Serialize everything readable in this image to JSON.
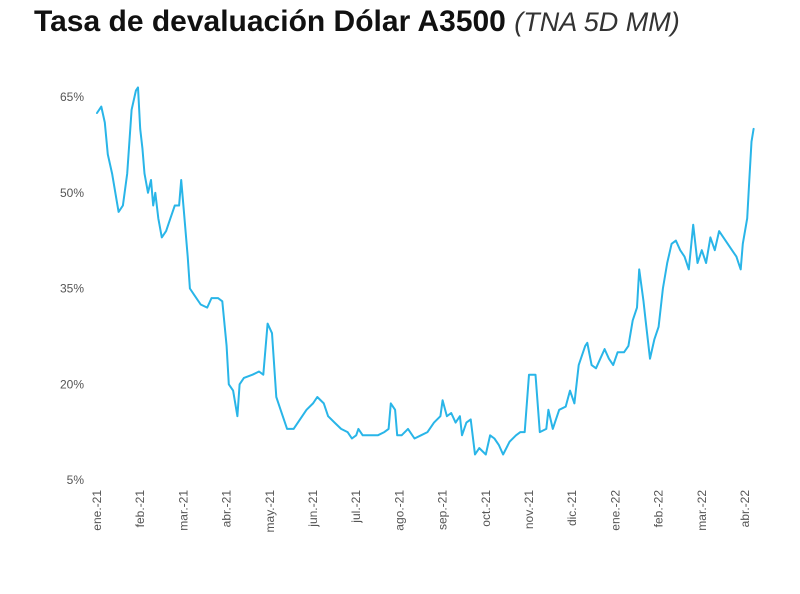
{
  "chart_data": {
    "type": "line",
    "title": "Tasa de devaluación Dólar A3500",
    "subtitle": "(TNA 5D MM)",
    "xlabel": "",
    "ylabel": "",
    "ylim": [
      5,
      65
    ],
    "ytick_values": [
      5,
      20,
      35,
      50,
      65
    ],
    "ytick_labels": [
      "5%",
      "20%",
      "35%",
      "50%",
      "65%"
    ],
    "x_ticks": [
      "ene.-21",
      "feb.-21",
      "mar.-21",
      "abr.-21",
      "may.-21",
      "jun.-21",
      "jul.-21",
      "ago.-21",
      "sep.-21",
      "oct.-21",
      "nov.-21",
      "dic.-21",
      "ene.-22",
      "feb.-22",
      "mar.-22",
      "abr.-22"
    ],
    "grid": false,
    "legend": "none",
    "series": [
      {
        "color": "#29B5E8",
        "points": [
          [
            0.0,
            62.5
          ],
          [
            0.1,
            63.5
          ],
          [
            0.18,
            61
          ],
          [
            0.25,
            56
          ],
          [
            0.35,
            53
          ],
          [
            0.45,
            49
          ],
          [
            0.5,
            47
          ],
          [
            0.6,
            48
          ],
          [
            0.7,
            53
          ],
          [
            0.8,
            63
          ],
          [
            0.9,
            66
          ],
          [
            0.95,
            66.5
          ],
          [
            1.0,
            60
          ],
          [
            1.05,
            57
          ],
          [
            1.1,
            53
          ],
          [
            1.18,
            50
          ],
          [
            1.25,
            52
          ],
          [
            1.3,
            48
          ],
          [
            1.35,
            50
          ],
          [
            1.42,
            46
          ],
          [
            1.5,
            43
          ],
          [
            1.6,
            44
          ],
          [
            1.7,
            46
          ],
          [
            1.8,
            48
          ],
          [
            1.9,
            48
          ],
          [
            1.95,
            52
          ],
          [
            2.0,
            48
          ],
          [
            2.1,
            40
          ],
          [
            2.15,
            35
          ],
          [
            2.25,
            34
          ],
          [
            2.4,
            32.5
          ],
          [
            2.55,
            32
          ],
          [
            2.65,
            33.5
          ],
          [
            2.8,
            33.5
          ],
          [
            2.9,
            33
          ],
          [
            3.0,
            26
          ],
          [
            3.05,
            20
          ],
          [
            3.15,
            19
          ],
          [
            3.25,
            15
          ],
          [
            3.3,
            20
          ],
          [
            3.4,
            21
          ],
          [
            3.6,
            21.5
          ],
          [
            3.75,
            22
          ],
          [
            3.85,
            21.5
          ],
          [
            3.95,
            29.5
          ],
          [
            4.05,
            28
          ],
          [
            4.15,
            18
          ],
          [
            4.25,
            16
          ],
          [
            4.4,
            13
          ],
          [
            4.55,
            13
          ],
          [
            4.7,
            14.5
          ],
          [
            4.85,
            16
          ],
          [
            5.0,
            17
          ],
          [
            5.1,
            18
          ],
          [
            5.25,
            17
          ],
          [
            5.35,
            15
          ],
          [
            5.5,
            14
          ],
          [
            5.65,
            13
          ],
          [
            5.8,
            12.5
          ],
          [
            5.9,
            11.5
          ],
          [
            6.0,
            12
          ],
          [
            6.05,
            13
          ],
          [
            6.15,
            12
          ],
          [
            6.3,
            12
          ],
          [
            6.5,
            12
          ],
          [
            6.65,
            12.5
          ],
          [
            6.75,
            13
          ],
          [
            6.8,
            17
          ],
          [
            6.9,
            16
          ],
          [
            6.95,
            12
          ],
          [
            7.05,
            12
          ],
          [
            7.2,
            13
          ],
          [
            7.35,
            11.5
          ],
          [
            7.5,
            12
          ],
          [
            7.65,
            12.5
          ],
          [
            7.8,
            14
          ],
          [
            7.95,
            15
          ],
          [
            8.0,
            17.5
          ],
          [
            8.1,
            15
          ],
          [
            8.2,
            15.5
          ],
          [
            8.3,
            14
          ],
          [
            8.4,
            15
          ],
          [
            8.45,
            12
          ],
          [
            8.55,
            14
          ],
          [
            8.65,
            14.5
          ],
          [
            8.75,
            9
          ],
          [
            8.85,
            10
          ],
          [
            9.0,
            9
          ],
          [
            9.1,
            12
          ],
          [
            9.2,
            11.5
          ],
          [
            9.3,
            10.5
          ],
          [
            9.4,
            9
          ],
          [
            9.55,
            11
          ],
          [
            9.7,
            12
          ],
          [
            9.8,
            12.5
          ],
          [
            9.9,
            12.5
          ],
          [
            10.0,
            21.5
          ],
          [
            10.15,
            21.5
          ],
          [
            10.25,
            12.5
          ],
          [
            10.4,
            13
          ],
          [
            10.45,
            16
          ],
          [
            10.55,
            13
          ],
          [
            10.6,
            14
          ],
          [
            10.7,
            16
          ],
          [
            10.85,
            16.5
          ],
          [
            10.95,
            19
          ],
          [
            11.05,
            17
          ],
          [
            11.15,
            23
          ],
          [
            11.3,
            26
          ],
          [
            11.35,
            26.5
          ],
          [
            11.45,
            23
          ],
          [
            11.55,
            22.5
          ],
          [
            11.65,
            24
          ],
          [
            11.75,
            25.5
          ],
          [
            11.85,
            24
          ],
          [
            11.95,
            23
          ],
          [
            12.05,
            25
          ],
          [
            12.2,
            25
          ],
          [
            12.3,
            26
          ],
          [
            12.4,
            30
          ],
          [
            12.5,
            32
          ],
          [
            12.55,
            38
          ],
          [
            12.65,
            33
          ],
          [
            12.7,
            30
          ],
          [
            12.8,
            24
          ],
          [
            12.9,
            27
          ],
          [
            13.0,
            29
          ],
          [
            13.1,
            35
          ],
          [
            13.2,
            39
          ],
          [
            13.3,
            42
          ],
          [
            13.4,
            42.5
          ],
          [
            13.5,
            41
          ],
          [
            13.6,
            40
          ],
          [
            13.7,
            38
          ],
          [
            13.8,
            45
          ],
          [
            13.9,
            39
          ],
          [
            14.0,
            41
          ],
          [
            14.1,
            39
          ],
          [
            14.2,
            43
          ],
          [
            14.3,
            41
          ],
          [
            14.4,
            44
          ],
          [
            14.5,
            43
          ],
          [
            14.6,
            42
          ],
          [
            14.7,
            41
          ],
          [
            14.8,
            40
          ],
          [
            14.85,
            39
          ],
          [
            14.9,
            38
          ],
          [
            14.95,
            42
          ],
          [
            15.0,
            44
          ],
          [
            15.05,
            46
          ],
          [
            15.1,
            52
          ],
          [
            15.15,
            58
          ],
          [
            15.2,
            60
          ]
        ]
      }
    ]
  }
}
